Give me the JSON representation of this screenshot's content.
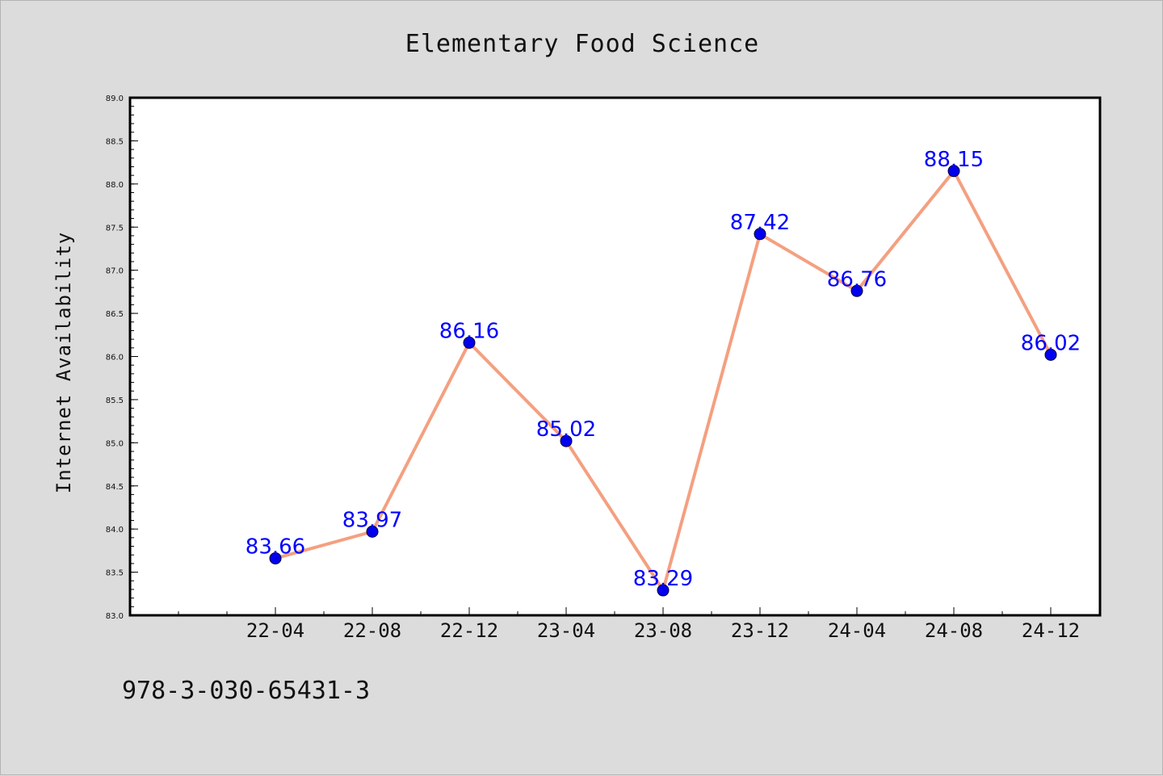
{
  "chart_data": {
    "type": "line",
    "title": "Elementary Food Science",
    "xlabel": "",
    "ylabel": "Internet Availability",
    "categories": [
      "22-04",
      "22-08",
      "22-12",
      "23-04",
      "23-08",
      "23-12",
      "24-04",
      "24-08",
      "24-12"
    ],
    "series": [
      {
        "values": [
          83.66,
          83.97,
          86.16,
          85.02,
          83.29,
          87.42,
          86.76,
          88.15,
          86.02
        ]
      }
    ],
    "data_labels": [
      "83.66",
      "83.97",
      "86.16",
      "85.02",
      "83.29",
      "87.42",
      "86.76",
      "88.15",
      "86.02"
    ],
    "ylim": [
      83.0,
      89.0
    ],
    "yticks": [
      "83.0",
      "83.5",
      "84.0",
      "84.5",
      "85.0",
      "85.5",
      "86.0",
      "86.5",
      "87.0",
      "87.5",
      "88.0",
      "88.5",
      "89.0"
    ],
    "grid": false,
    "colors": {
      "line": "#f4a080",
      "marker": "#0000ee",
      "marker_edge": "#000033",
      "label": "#0000ff",
      "plot_bg": "#ffffff",
      "figure_bg": "#dcdcdc"
    }
  },
  "footer": {
    "isbn": "978-3-030-65431-3"
  }
}
